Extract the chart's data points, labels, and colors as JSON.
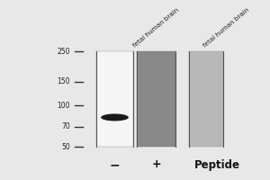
{
  "bg_color": "#e8e8e8",
  "lane1_color": "#f5f5f5",
  "lane2_color": "#888888",
  "lane3_color": "#b8b8b8",
  "band_color": "#1a1a1a",
  "marker_color": "#333333",
  "text_color": "#222222",
  "mw_labels": [
    "250",
    "150",
    "100",
    "70",
    "50"
  ],
  "mw_positions": [
    250,
    150,
    100,
    70,
    50
  ],
  "lane_labels_top": [
    "fetal human brain",
    "fetal human brain"
  ],
  "minus_label": "−",
  "plus_label": "+",
  "peptide_label": "Peptide",
  "band_kda": 82,
  "fig_width": 3.0,
  "fig_height": 2.0,
  "dpi": 100
}
